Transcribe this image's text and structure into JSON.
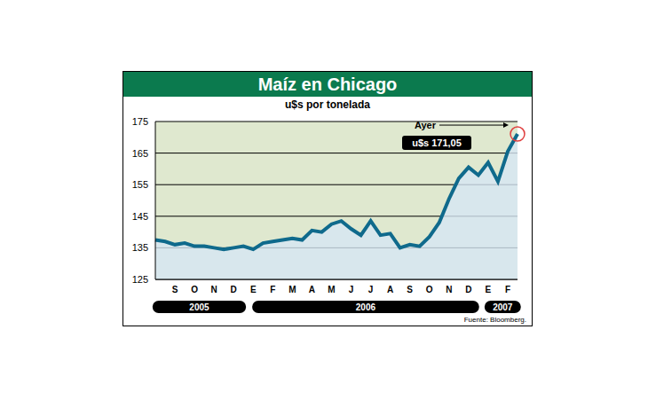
{
  "chart_data": {
    "type": "area",
    "title": "Maíz en Chicago",
    "subtitle": "u$s por tonelada",
    "source": "Fuente: Bloomberg.",
    "annotation": {
      "label": "Ayer",
      "text": "u$s 171,05"
    },
    "categories": [
      null,
      null,
      "S",
      null,
      "O",
      null,
      "N",
      null,
      "D",
      null,
      "E",
      null,
      "F",
      null,
      "M",
      null,
      "A",
      null,
      "M",
      null,
      "J",
      null,
      "J",
      null,
      "A",
      null,
      "S",
      null,
      "O",
      null,
      "N",
      null,
      "D",
      null,
      "E",
      null,
      "F",
      null
    ],
    "year_labels": [
      "2005",
      "2006",
      "2007"
    ],
    "values": [
      137.5,
      137,
      136,
      136.5,
      135.5,
      135.5,
      135,
      134.5,
      135,
      135.5,
      134.5,
      136.5,
      137,
      137.5,
      138,
      137.5,
      140.5,
      140,
      142.5,
      143.5,
      141,
      139,
      143.5,
      139,
      139.5,
      135,
      136,
      135.5,
      138.5,
      143,
      150.5,
      157,
      160.5,
      158,
      162,
      156,
      165.5,
      171.05
    ],
    "color": "#0f6a8c",
    "ylim": [
      125,
      175
    ],
    "yticks": [
      125,
      135,
      145,
      155,
      165,
      175
    ],
    "grid": true
  }
}
